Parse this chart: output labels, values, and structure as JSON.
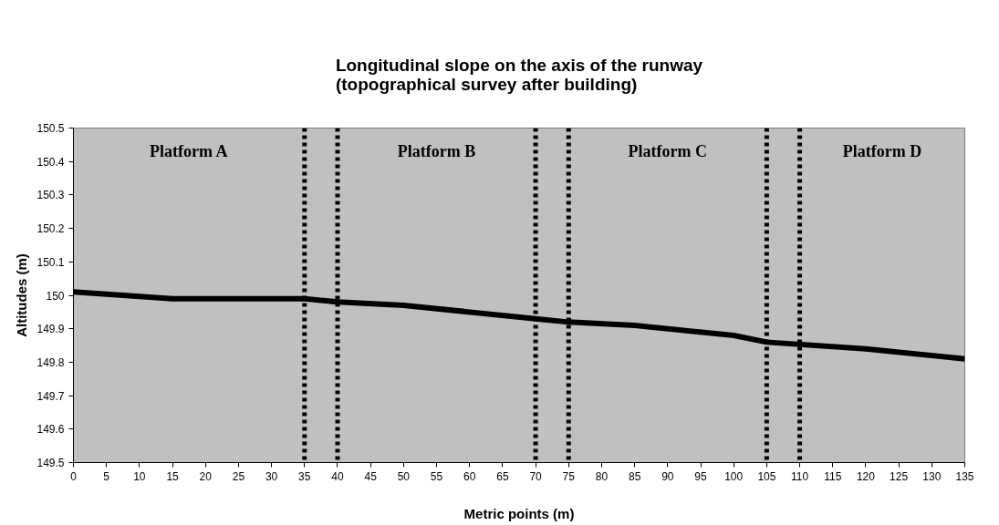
{
  "chart_data": {
    "type": "line",
    "title": "Longitudinal slope on the axis of the runway\n(topographical survey after building)",
    "xlabel": "Metric points (m)",
    "ylabel": "Altitudes (m)",
    "x": [
      0,
      15,
      35,
      40,
      50,
      70,
      75,
      85,
      100,
      105,
      120,
      135
    ],
    "series": [
      {
        "color": "#000000",
        "values": [
          150.01,
          149.99,
          149.99,
          149.98,
          149.97,
          149.93,
          149.92,
          149.91,
          149.88,
          149.86,
          149.84,
          149.81
        ]
      }
    ],
    "xlim": [
      0,
      135
    ],
    "xticks": [
      0,
      5,
      10,
      15,
      20,
      25,
      30,
      35,
      40,
      45,
      50,
      55,
      60,
      65,
      70,
      75,
      80,
      85,
      90,
      95,
      100,
      105,
      110,
      115,
      120,
      125,
      130,
      135
    ],
    "ylim": [
      149.5,
      150.5
    ],
    "yticks": [
      149.5,
      149.6,
      149.7,
      149.8,
      149.9,
      150,
      150.1,
      150.2,
      150.3,
      150.4,
      150.5
    ],
    "ref_lines": [
      {
        "axis": "x",
        "value": 35,
        "line_style": "dotted",
        "color": "#000000"
      },
      {
        "axis": "x",
        "value": 40,
        "line_style": "dotted",
        "color": "#000000"
      },
      {
        "axis": "x",
        "value": 70,
        "line_style": "dotted",
        "color": "#000000"
      },
      {
        "axis": "x",
        "value": 75,
        "line_style": "dotted",
        "color": "#000000"
      },
      {
        "axis": "x",
        "value": 105,
        "line_style": "dotted",
        "color": "#000000"
      },
      {
        "axis": "x",
        "value": 110,
        "line_style": "dotted",
        "color": "#000000"
      }
    ],
    "annotations": [
      "Platform A",
      "Platform B",
      "Platform C",
      "Platform D"
    ],
    "grid": false,
    "marker": "none",
    "line_style": "solid"
  }
}
